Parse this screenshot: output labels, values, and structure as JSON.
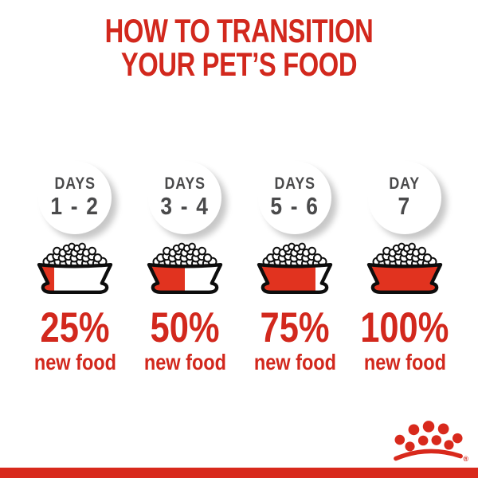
{
  "title": {
    "line1": "HOW TO TRANSITION",
    "line2": "YOUR PET’S FOOD"
  },
  "columns": [
    {
      "day_label": "DAYS",
      "day_range": "1 - 2",
      "percent": "25%",
      "percent_value": 25,
      "caption": "new food"
    },
    {
      "day_label": "DAYS",
      "day_range": "3 - 4",
      "percent": "50%",
      "percent_value": 50,
      "caption": "new food"
    },
    {
      "day_label": "DAYS",
      "day_range": "5 - 6",
      "percent": "75%",
      "percent_value": 75,
      "caption": "new food"
    },
    {
      "day_label": "DAY",
      "day_range": "7",
      "percent": "100%",
      "percent_value": 100,
      "caption": "new food"
    }
  ],
  "logo": {
    "name": "royal-canin-crown",
    "registered": "®"
  },
  "colors": {
    "red": "#d2281d",
    "bowl_red": "#e1331f",
    "bar_red": "#d8291c",
    "crown_red": "#d8291c",
    "gray": "#4a4a4b",
    "outline": "#0d0d0d"
  }
}
